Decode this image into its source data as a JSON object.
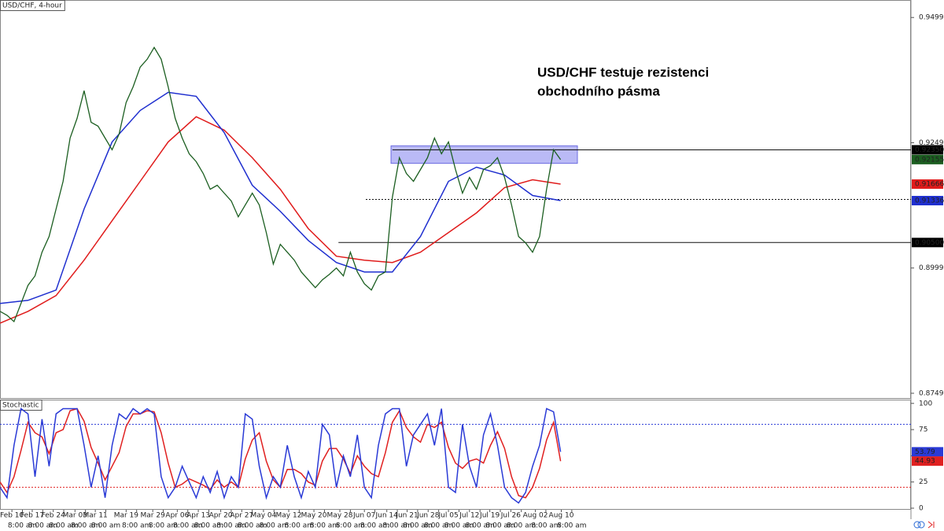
{
  "chart_data": [
    {
      "type": "line",
      "title": "USD/CHF, 4-hour",
      "annotation": [
        "USD/CHF testuje rezistenci",
        "obchodního pásma"
      ],
      "x": [
        0,
        1,
        2,
        3,
        4,
        5,
        6,
        7,
        8,
        9,
        10,
        11,
        12,
        13,
        14,
        15,
        16,
        17,
        18,
        19,
        20,
        21,
        22,
        23,
        24,
        25,
        26,
        27,
        28,
        29,
        30,
        31,
        32,
        33,
        34,
        35,
        36,
        37,
        38,
        39,
        40,
        41,
        42,
        43,
        44,
        45,
        46,
        47,
        48,
        49,
        50,
        51,
        52,
        53,
        54,
        55,
        56,
        57,
        58,
        59,
        60,
        61,
        62,
        63,
        64,
        65,
        66,
        67,
        68,
        69,
        70,
        71,
        72,
        73,
        74,
        75,
        76,
        77,
        78,
        79,
        80
      ],
      "xlim": [
        0,
        130
      ],
      "xticks": [
        {
          "value": 1.7,
          "label": "Feb 10"
        },
        {
          "value": 3.2,
          "label": "8:00 am"
        },
        {
          "value": 4.6,
          "label": "Feb 17"
        },
        {
          "value": 6.1,
          "label": "8:00 am"
        },
        {
          "value": 7.6,
          "label": "Feb 24"
        },
        {
          "value": 9.1,
          "label": "8:00 am"
        },
        {
          "value": 10.7,
          "label": "Mar 03"
        },
        {
          "value": 12.2,
          "label": "8:00 am"
        },
        {
          "value": 13.6,
          "label": "Mar 11"
        },
        {
          "value": 15.1,
          "label": "8:00 am"
        },
        {
          "value": 18,
          "label": "Mar 19"
        },
        {
          "value": 19.5,
          "label": "8:00 am"
        },
        {
          "value": 21.8,
          "label": "Mar 29"
        },
        {
          "value": 23.3,
          "label": "8:00 am"
        },
        {
          "value": 25.3,
          "label": "Apr 06"
        },
        {
          "value": 26.8,
          "label": "8:00 am"
        },
        {
          "value": 28.3,
          "label": "Apr 13"
        },
        {
          "value": 29.8,
          "label": "8:00 am"
        },
        {
          "value": 31.5,
          "label": "Apr 20"
        },
        {
          "value": 33,
          "label": "8:00 am"
        },
        {
          "value": 34.5,
          "label": "Apr 27"
        },
        {
          "value": 36,
          "label": "8:00 am"
        },
        {
          "value": 37.6,
          "label": "May 04"
        },
        {
          "value": 39.1,
          "label": "8:00 am"
        },
        {
          "value": 41.2,
          "label": "May 12"
        },
        {
          "value": 42.7,
          "label": "8:00 am"
        },
        {
          "value": 44.8,
          "label": "May 20"
        },
        {
          "value": 46.3,
          "label": "8:00 am"
        },
        {
          "value": 48.5,
          "label": "May 28"
        },
        {
          "value": 50,
          "label": "8:00 am"
        },
        {
          "value": 52,
          "label": "Jun 07"
        },
        {
          "value": 53.5,
          "label": "8:00 am"
        },
        {
          "value": 55.2,
          "label": "Jun 14"
        },
        {
          "value": 56.7,
          "label": "8:00 am"
        },
        {
          "value": 58.1,
          "label": "Jun 21"
        },
        {
          "value": 59.6,
          "label": "8:00 am"
        },
        {
          "value": 61.1,
          "label": "Jun 28"
        },
        {
          "value": 62.6,
          "label": "8:00 am"
        },
        {
          "value": 64,
          "label": "Jul 05"
        },
        {
          "value": 65.5,
          "label": "8:00 am"
        },
        {
          "value": 67,
          "label": "Jul 12"
        },
        {
          "value": 68.5,
          "label": "8:00 am"
        },
        {
          "value": 69.9,
          "label": "Jul 19"
        },
        {
          "value": 71.4,
          "label": "8:00 am"
        },
        {
          "value": 72.9,
          "label": "Jul 26"
        },
        {
          "value": 74.4,
          "label": "8:00 am"
        },
        {
          "value": 76.4,
          "label": "Aug 02"
        },
        {
          "value": 77.9,
          "label": "8:00 am"
        },
        {
          "value": 80.1,
          "label": "Aug 10"
        },
        {
          "value": 81.6,
          "label": "8:00 am"
        }
      ],
      "ylim": [
        0.8738,
        0.9534
      ],
      "yticks": [
        0.94991,
        0.92491,
        0.89991,
        0.87491
      ],
      "series": [
        {
          "color": "#1b5e20",
          "values": [
            0.89126,
            0.89048,
            0.88922,
            0.89284,
            0.89645,
            0.89834,
            0.90306,
            0.9062,
            0.9117,
            0.91721,
            0.92585,
            0.92978,
            0.93529,
            0.929,
            0.92821,
            0.92585,
            0.9235,
            0.92664,
            0.93293,
            0.93607,
            0.94,
            0.94158,
            0.94394,
            0.94158,
            0.93607,
            0.92978,
            0.92585,
            0.92271,
            0.92114,
            0.91878,
            0.91563,
            0.91642,
            0.91485,
            0.91328,
            0.91013,
            0.91249,
            0.91485,
            0.91249,
            0.90699,
            0.9007,
            0.90463,
            0.90306,
            0.90148,
            0.89912,
            0.89755,
            0.89598,
            0.89755,
            0.89865,
            0.89991,
            0.89834,
            0.90306,
            0.89912,
            0.89677,
            0.89551,
            0.89834,
            0.89912,
            0.91406,
            0.92192,
            0.91878,
            0.91721,
            0.91956,
            0.92192,
            0.92585,
            0.92271,
            0.92507,
            0.91956,
            0.91485,
            0.91799,
            0.91563,
            0.91956,
            0.92035,
            0.92192,
            0.91799,
            0.91249,
            0.9062,
            0.90494,
            0.90306,
            0.9062,
            0.91563,
            0.9235,
            0.92155
          ]
        },
        {
          "color": "#1f2fcf",
          "x": [
            0,
            4,
            8,
            12,
            16,
            20,
            24,
            28,
            32,
            36,
            40,
            44,
            48,
            52,
            56,
            60,
            64,
            68,
            72,
            76,
            80
          ],
          "values": [
            0.89284,
            0.89346,
            0.89551,
            0.9117,
            0.92507,
            0.93136,
            0.93497,
            0.93419,
            0.92695,
            0.91642,
            0.91123,
            0.90541,
            0.90101,
            0.89912,
            0.89912,
            0.9062,
            0.91721,
            0.92004,
            0.91846,
            0.91438,
            0.91336
          ]
        },
        {
          "color": "#e01b1b",
          "x": [
            0,
            4,
            8,
            12,
            16,
            20,
            24,
            28,
            32,
            36,
            40,
            44,
            48,
            52,
            56,
            60,
            64,
            68,
            72,
            76,
            80
          ],
          "values": [
            0.8889,
            0.89126,
            0.89441,
            0.90148,
            0.90934,
            0.91721,
            0.92507,
            0.9301,
            0.92743,
            0.92192,
            0.91563,
            0.90777,
            0.90227,
            0.90148,
            0.90101,
            0.90306,
            0.90699,
            0.91092,
            0.91595,
            0.91752,
            0.91666
          ]
        }
      ],
      "levels": [
        {
          "value": 0.9235,
          "label": "0.92350",
          "from": 56,
          "style": "solid"
        },
        {
          "value": 0.905,
          "label": "0.90500",
          "from": 48.3,
          "style": "solid"
        },
        {
          "value": 0.9136,
          "from": 52.2,
          "style": "dotted"
        }
      ],
      "zone": {
        "x": [
          55.8,
          82.4
        ],
        "y": [
          0.9208,
          0.9243
        ],
        "color": "#8c8cf0"
      }
    },
    {
      "type": "line",
      "title": "Stochastic",
      "x": [
        0,
        1,
        2,
        3,
        4,
        5,
        6,
        7,
        8,
        9,
        10,
        11,
        12,
        13,
        14,
        15,
        16,
        17,
        18,
        19,
        20,
        21,
        22,
        23,
        24,
        25,
        26,
        27,
        28,
        29,
        30,
        31,
        32,
        33,
        34,
        35,
        36,
        37,
        38,
        39,
        40,
        41,
        42,
        43,
        44,
        45,
        46,
        47,
        48,
        49,
        50,
        51,
        52,
        53,
        54,
        55,
        56,
        57,
        58,
        59,
        60,
        61,
        62,
        63,
        64,
        65,
        66,
        67,
        68,
        69,
        70,
        71,
        72,
        73,
        74,
        75,
        76,
        77,
        78,
        79,
        80
      ],
      "xlim": [
        0,
        130
      ],
      "ylim": [
        -1.5,
        103.6
      ],
      "yticks": [
        0,
        25,
        50,
        75,
        100
      ],
      "series": [
        {
          "color": "#2a3ad6",
          "values": [
            20,
            10,
            60,
            95,
            90,
            30,
            85,
            40,
            90,
            95,
            95,
            95,
            60,
            20,
            50,
            10,
            60,
            90,
            85,
            95,
            90,
            95,
            90,
            30,
            10,
            20,
            40,
            25,
            10,
            30,
            15,
            35,
            10,
            30,
            20,
            90,
            85,
            40,
            10,
            30,
            20,
            60,
            30,
            10,
            35,
            20,
            80,
            70,
            20,
            50,
            30,
            70,
            20,
            10,
            60,
            90,
            95,
            95,
            40,
            70,
            80,
            90,
            60,
            95,
            20,
            15,
            80,
            40,
            20,
            70,
            90,
            60,
            20,
            10,
            5,
            15,
            40,
            60,
            95,
            92,
            53.79
          ]
        },
        {
          "color": "#e02020",
          "values": [
            25,
            15,
            30,
            55,
            82,
            72,
            68,
            52,
            72,
            75,
            93,
            95,
            83,
            58,
            43,
            27,
            40,
            53,
            78,
            90,
            90,
            93,
            92,
            72,
            43,
            20,
            23,
            28,
            25,
            22,
            18,
            27,
            20,
            25,
            20,
            47,
            65,
            72,
            45,
            27,
            20,
            37,
            37,
            33,
            25,
            22,
            45,
            57,
            57,
            47,
            33,
            50,
            40,
            33,
            30,
            53,
            82,
            93,
            77,
            68,
            63,
            80,
            77,
            82,
            58,
            43,
            38,
            45,
            47,
            43,
            60,
            73,
            57,
            30,
            12,
            10,
            20,
            38,
            65,
            82,
            44.93
          ]
        }
      ],
      "levels": [
        {
          "value": 80,
          "color": "#2a3ad6",
          "style": "dotted"
        },
        {
          "value": 20,
          "color": "#e02020",
          "style": "dotted"
        }
      ]
    }
  ]
}
